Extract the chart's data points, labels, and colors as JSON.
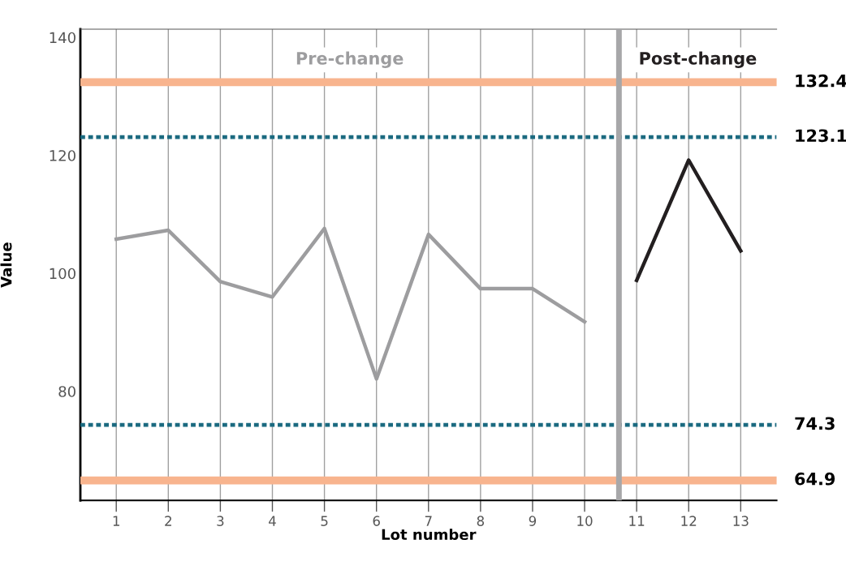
{
  "chart_data": {
    "type": "line",
    "xlabel": "Lot number",
    "ylabel": "Value",
    "xlim": [
      0.31,
      13.69
    ],
    "ylim": [
      61.5,
      141.4
    ],
    "xticks": [
      1,
      2,
      3,
      4,
      5,
      6,
      7,
      8,
      9,
      10,
      11,
      12,
      13
    ],
    "yticks": [
      80,
      100,
      120,
      140
    ],
    "grid": "x",
    "marker": "none",
    "line_style": "solid",
    "series": [
      {
        "color": "#9d9d9f",
        "x": [
          1,
          2,
          3,
          4,
          5,
          6,
          7,
          8,
          9,
          10
        ],
        "values": [
          105.8,
          107.3,
          98.6,
          96.0,
          107.6,
          82.1,
          106.6,
          97.4,
          97.4,
          91.8
        ]
      },
      {
        "color": "#231f20",
        "x": [
          11,
          12,
          13
        ],
        "values": [
          98.8,
          119.2,
          103.8
        ]
      }
    ],
    "ref_lines": [
      {
        "axis": "y",
        "value": 132.4,
        "label": "132.4",
        "color": "#f8b48e",
        "line_style": "solid"
      },
      {
        "axis": "y",
        "value": 123.1,
        "label": "123.1",
        "color": "#1b6a80",
        "line_style": "dotted"
      },
      {
        "axis": "y",
        "value": 74.3,
        "label": "74.3",
        "color": "#1b6a80",
        "line_style": "dotted"
      },
      {
        "axis": "y",
        "value": 64.9,
        "label": "64.9",
        "color": "#f8b48e",
        "line_style": "solid"
      },
      {
        "axis": "x",
        "value": 10.66,
        "label": null,
        "color": "#a7a7a9",
        "line_style": "solid"
      }
    ],
    "annotations": [
      "Pre-change",
      "Post-change"
    ]
  }
}
